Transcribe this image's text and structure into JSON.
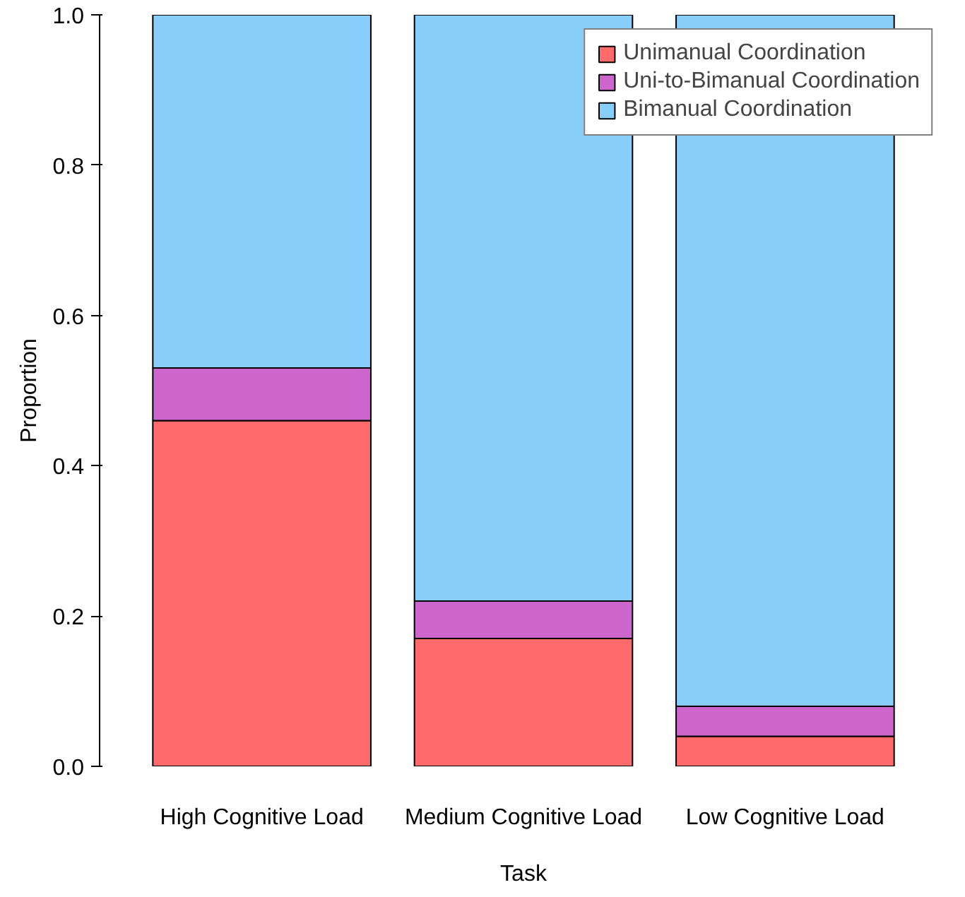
{
  "chart_data": {
    "type": "bar",
    "stacked": true,
    "xlabel": "Task",
    "ylabel": "Proportion",
    "categories": [
      "High Cognitive Load",
      "Medium Cognitive Load",
      "Low Cognitive Load"
    ],
    "series": [
      {
        "name": "Unimanual Coordination",
        "color": "#ff6a6a",
        "values": [
          0.46,
          0.17,
          0.04
        ]
      },
      {
        "name": "Uni-to-Bimanual Coordination",
        "color": "#cc66cc",
        "values": [
          0.07,
          0.05,
          0.04
        ]
      },
      {
        "name": "Bimanual Coordination",
        "color": "#87cefa",
        "values": [
          0.47,
          0.78,
          0.92
        ]
      }
    ],
    "ylim": [
      0,
      1
    ],
    "yticks": [
      {
        "value": 0,
        "label": "0.0"
      },
      {
        "value": 0.2,
        "label": "0.2"
      },
      {
        "value": 0.4,
        "label": "0.4"
      },
      {
        "value": 0.6,
        "label": "0.6"
      },
      {
        "value": 0.8,
        "label": "0.8"
      },
      {
        "value": 1,
        "label": "1.0"
      }
    ],
    "grid": false,
    "legend": "top right"
  }
}
